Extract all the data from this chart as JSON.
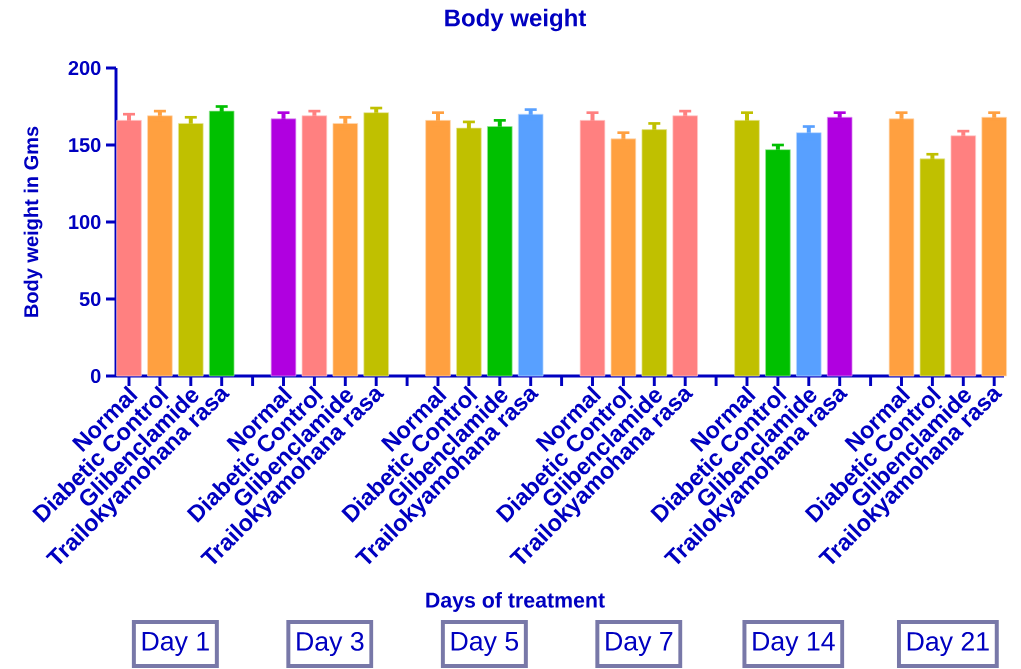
{
  "chart_data": {
    "type": "bar",
    "title": "Body weight",
    "xlabel": "Days of treatment",
    "ylabel": "Body weight in Gms",
    "categories": [
      "Normal",
      "Diabetic Control",
      "Glibenclamide",
      "Trailokyamohana rasa",
      null,
      "Normal",
      "Diabetic Control",
      "Glibenclamide",
      "Trailokyamohana rasa",
      null,
      "Normal",
      "Diabetic Control",
      "Glibenclamide",
      "Trailokyamohana rasa",
      null,
      "Normal",
      "Diabetic Control",
      "Glibenclamide",
      "Trailokyamohana rasa",
      null,
      "Normal",
      "Diabetic Control",
      "Glibenclamide",
      "Trailokyamohana rasa",
      null,
      "Normal",
      "Diabetic Control",
      "Glibenclamide",
      "Trailokyamohana rasa"
    ],
    "values": [
      166,
      169,
      164,
      172,
      null,
      167,
      169,
      164,
      171,
      null,
      166,
      161,
      162,
      170,
      null,
      166,
      154,
      160,
      169,
      null,
      166,
      147,
      158,
      168,
      null,
      167,
      141,
      156,
      168
    ],
    "errors": [
      4,
      3,
      4,
      3,
      null,
      4,
      3,
      4,
      3,
      null,
      5,
      4,
      4,
      3,
      null,
      5,
      4,
      4,
      3,
      null,
      5,
      3,
      4,
      3,
      null,
      4,
      3,
      3,
      3
    ],
    "colors": [
      "#ff8080",
      "#ffa040",
      "#c0c000",
      "#00c000",
      null,
      "#b000e0",
      "#ff8080",
      "#ffa040",
      "#c0c000",
      null,
      "#ffa040",
      "#c0c000",
      "#00c000",
      "#58a0ff",
      null,
      "#ff8080",
      "#ffa040",
      "#c0c000",
      "#ff8080",
      null,
      "#c0c000",
      "#00c000",
      "#58a0ff",
      "#b000e0",
      null,
      "#ffa040",
      "#c0c000",
      "#ff8080",
      "#ffa040"
    ],
    "ylim": [
      0,
      200
    ],
    "yticks": [
      0,
      50,
      100,
      150,
      200
    ],
    "annotations": [
      "Day 1",
      "Day 3",
      "Day 5",
      "Day 7",
      "Day 14",
      "Day 21"
    ]
  }
}
